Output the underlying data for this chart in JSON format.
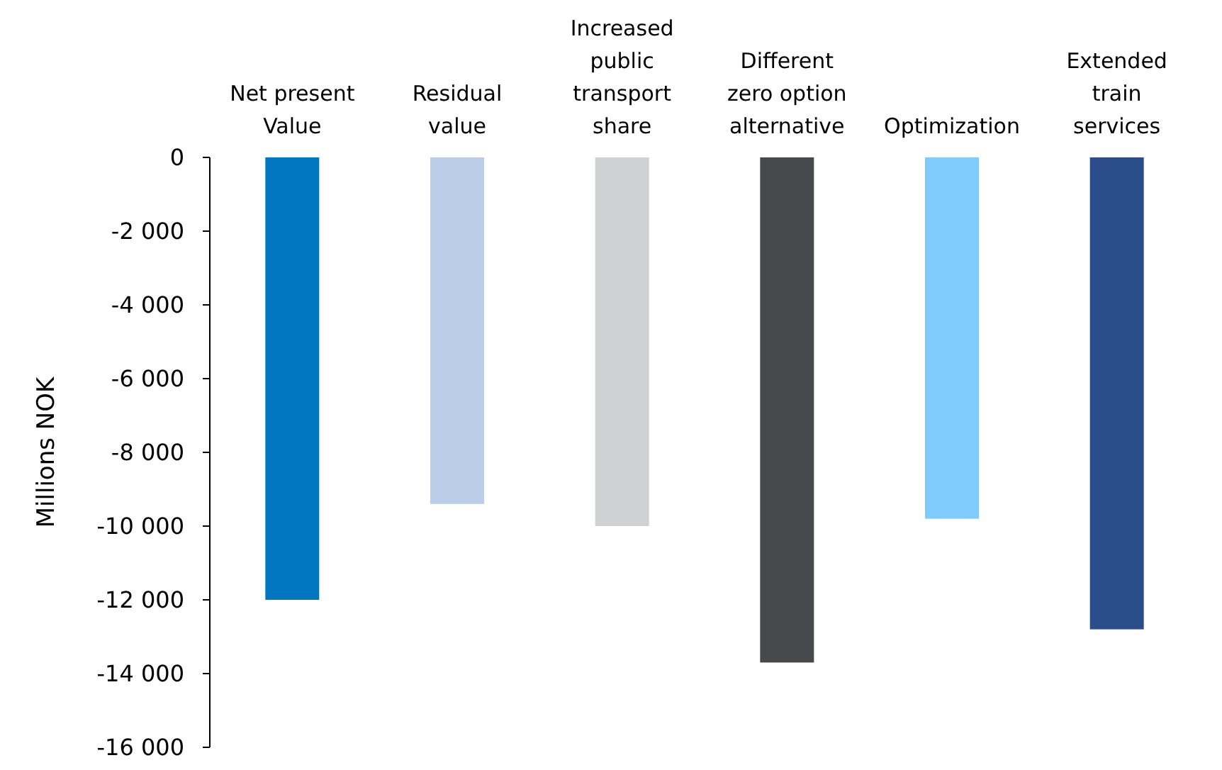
{
  "chart_data": {
    "type": "bar",
    "ylabel": "Millions NOK",
    "categories": [
      "Net present Value",
      "Residual value",
      "Increased public transport share",
      "Different zero option alternative",
      "Optimization",
      "Extended train services"
    ],
    "values": [
      -12000,
      -9400,
      -10000,
      -13700,
      -9800,
      -12800
    ],
    "colors": [
      "#0077c0",
      "#bccde9",
      "#d0d1d3",
      "#46484c",
      "#7fcbfe",
      "#2b4e8a"
    ],
    "ylim": [
      -16000,
      0
    ],
    "yticks": [
      {
        "value": 0,
        "label": "0"
      },
      {
        "value": -2000,
        "label": "-2 000"
      },
      {
        "value": -4000,
        "label": "-4 000"
      },
      {
        "value": -6000,
        "label": "-6 000"
      },
      {
        "value": -8000,
        "label": "-8 000"
      },
      {
        "value": -10000,
        "label": "-10 000"
      },
      {
        "value": -12000,
        "label": "-12 000"
      },
      {
        "value": -14000,
        "label": "-14 000"
      },
      {
        "value": -16000,
        "label": "-16 000"
      }
    ],
    "grid": false
  }
}
